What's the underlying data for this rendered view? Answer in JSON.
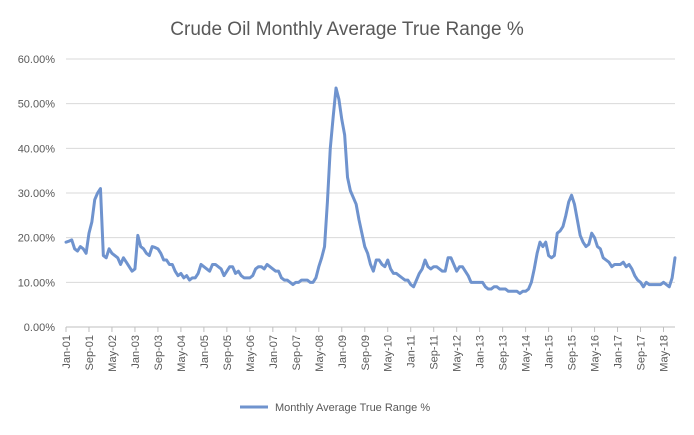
{
  "chart_data": {
    "type": "line",
    "title": "Crude Oil Monthly Average True Range %",
    "xlabel": "",
    "ylabel": "",
    "ylim": [
      0,
      60
    ],
    "y_ticks": [
      "0.00%",
      "10.00%",
      "20.00%",
      "30.00%",
      "40.00%",
      "50.00%",
      "60.00%"
    ],
    "x_tick_labels": [
      "Jan-01",
      "Sep-01",
      "May-02",
      "Jan-03",
      "Sep-03",
      "May-04",
      "Jan-05",
      "Sep-05",
      "May-06",
      "Jan-07",
      "Sep-07",
      "May-08",
      "Jan-09",
      "Sep-09",
      "May-10",
      "Jan-11",
      "Sep-11",
      "May-12",
      "Jan-13",
      "Sep-13",
      "May-14",
      "Jan-15",
      "Sep-15",
      "May-16",
      "Jan-17",
      "Sep-17",
      "May-18"
    ],
    "grid": true,
    "legend": "bottom",
    "series_color": "#6F93CE",
    "series": [
      {
        "name": "Monthly Average True Range %",
        "start": "Jan-01",
        "frequency": "monthly",
        "values": [
          19,
          19.2,
          19.5,
          17.5,
          17,
          18,
          17.5,
          16.5,
          21,
          23.5,
          28.5,
          30,
          31,
          16,
          15.5,
          17.5,
          16.5,
          16,
          15.5,
          14,
          15.5,
          14.5,
          13.5,
          12.5,
          13,
          20.5,
          18,
          17.5,
          16.5,
          16,
          18,
          17.8,
          17.5,
          16.5,
          15,
          15,
          14,
          14,
          12.5,
          11.5,
          12,
          11,
          11.5,
          10.5,
          11,
          11,
          12,
          14,
          13.5,
          13,
          12.5,
          14,
          14,
          13.5,
          13,
          11.5,
          12.5,
          13.5,
          13.5,
          12,
          12.5,
          11.5,
          11,
          11,
          11,
          11.5,
          13,
          13.5,
          13.5,
          13,
          14,
          13.5,
          13,
          12.5,
          12.5,
          11,
          10.5,
          10.5,
          10,
          9.5,
          10,
          10,
          10.5,
          10.5,
          10.5,
          10,
          10,
          11,
          13.5,
          15.5,
          18,
          28,
          40,
          47,
          53.5,
          51,
          46.5,
          43,
          33.5,
          30.5,
          29,
          27.5,
          24,
          21,
          18,
          16.5,
          14,
          12.5,
          15,
          15,
          14,
          13.5,
          15,
          13,
          12,
          12,
          11.5,
          11,
          10.5,
          10.5,
          9.5,
          9,
          10.5,
          12,
          13,
          15,
          13.5,
          13,
          13.5,
          13.5,
          13,
          12.5,
          12.5,
          15.5,
          15.5,
          14,
          12.5,
          13.5,
          13.5,
          12.5,
          11.5,
          10,
          10,
          10,
          10,
          10,
          9,
          8.5,
          8.5,
          9,
          9,
          8.5,
          8.5,
          8.5,
          8,
          8,
          8,
          8,
          7.5,
          8,
          8,
          8.5,
          10,
          13,
          16.5,
          19,
          18,
          19,
          16,
          15.5,
          16,
          21,
          21.5,
          22.5,
          25,
          28,
          29.5,
          27.5,
          24,
          20.5,
          19,
          18,
          18.5,
          21,
          20,
          18,
          17.5,
          15.5,
          15,
          14.5,
          13.5,
          14,
          14,
          14,
          14.5,
          13.5,
          14,
          13,
          11.5,
          10.5,
          10,
          9,
          10,
          9.5,
          9.5,
          9.5,
          9.5,
          9.5,
          10,
          9.5,
          9,
          11,
          15.5
        ]
      }
    ]
  }
}
